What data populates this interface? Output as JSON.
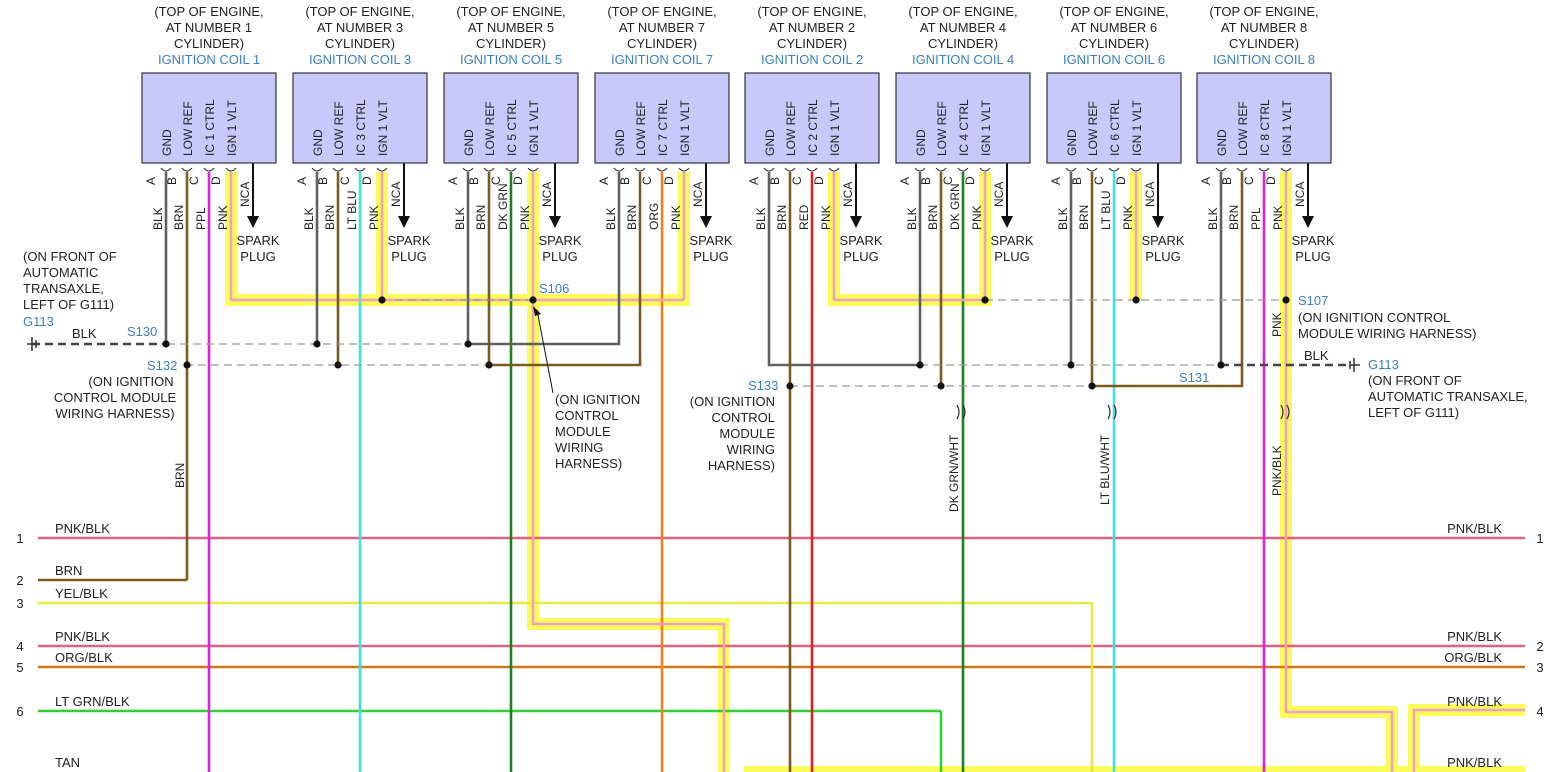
{
  "coil_location": [
    "(TOP OF ENGINE,",
    "CYLINDER)"
  ],
  "coils": [
    {
      "title": "IGNITION COIL 1",
      "cyl": "AT NUMBER 1",
      "pins": [
        "GND",
        "LOW REF",
        "IC 1 CTRL",
        "IGN 1 VLT"
      ],
      "wires": [
        "BLK",
        "BRN",
        "PPL",
        "PNK"
      ]
    },
    {
      "title": "IGNITION COIL 3",
      "cyl": "AT NUMBER 3",
      "pins": [
        "GND",
        "LOW REF",
        "IC 3 CTRL",
        "IGN 1 VLT"
      ],
      "wires": [
        "BLK",
        "BRN",
        "LT BLU",
        "PNK"
      ]
    },
    {
      "title": "IGNITION COIL 5",
      "cyl": "AT NUMBER 5",
      "pins": [
        "GND",
        "LOW REF",
        "IC 5 CTRL",
        "IGN 1 VLT"
      ],
      "wires": [
        "BLK",
        "BRN",
        "DK GRN",
        "PNK"
      ]
    },
    {
      "title": "IGNITION COIL 7",
      "cyl": "AT NUMBER 7",
      "pins": [
        "GND",
        "LOW REF",
        "IC 7 CTRL",
        "IGN 1 VLT"
      ],
      "wires": [
        "BLK",
        "BRN",
        "ORG",
        "PNK"
      ]
    },
    {
      "title": "IGNITION COIL 2",
      "cyl": "AT NUMBER 2",
      "pins": [
        "GND",
        "LOW REF",
        "IC 2 CTRL",
        "IGN 1 VLT"
      ],
      "wires": [
        "BLK",
        "BRN",
        "RED",
        "PNK"
      ]
    },
    {
      "title": "IGNITION COIL 4",
      "cyl": "AT NUMBER 4",
      "pins": [
        "GND",
        "LOW REF",
        "IC 4 CTRL",
        "IGN 1 VLT"
      ],
      "wires": [
        "BLK",
        "BRN",
        "DK GRN",
        "PNK"
      ]
    },
    {
      "title": "IGNITION COIL 6",
      "cyl": "AT NUMBER 6",
      "pins": [
        "GND",
        "LOW REF",
        "IC 6 CTRL",
        "IGN 1 VLT"
      ],
      "wires": [
        "BLK",
        "BRN",
        "LT BLU",
        "PNK"
      ]
    },
    {
      "title": "IGNITION COIL 8",
      "cyl": "AT NUMBER 8",
      "pins": [
        "GND",
        "LOW REF",
        "IC 8 CTRL",
        "IGN 1 VLT"
      ],
      "wires": [
        "BLK",
        "BRN",
        "PPL",
        "PNK"
      ]
    }
  ],
  "pin_letters": [
    "A",
    "B",
    "C",
    "D"
  ],
  "nca": "NCA",
  "spark_plug": [
    "SPARK",
    "PLUG"
  ],
  "splices": {
    "s130": "S130",
    "s132": "S132",
    "s106": "S106",
    "s107": "S107",
    "s133": "S133",
    "s131": "S131"
  },
  "grounds": {
    "left_name": "G113",
    "left_note": [
      "(ON FRONT OF",
      "AUTOMATIC",
      "TRANSAXLE,",
      "LEFT OF G111)"
    ],
    "left_wire": "BLK",
    "right_name": "G113",
    "right_note": [
      "(ON FRONT OF",
      "AUTOMATIC TRANSAXLE,",
      "LEFT OF G111)"
    ],
    "right_wire": "BLK"
  },
  "notes": {
    "s132": [
      "(ON IGNITION",
      "CONTROL MODULE",
      "WIRING HARNESS)"
    ],
    "s106": [
      "(ON IGNITION",
      "CONTROL",
      "MODULE",
      "WIRING",
      "HARNESS)"
    ],
    "s133": [
      "(ON IGNITION",
      "CONTROL",
      "MODULE",
      "WIRING",
      "HARNESS)"
    ],
    "s107": [
      "(ON IGNITION CONTROL",
      "MODULE WIRING HARNESS)"
    ]
  },
  "vertical_labels": {
    "brn": "BRN",
    "dkgrn_wht": "DK GRN/WHT",
    "ltblu_wht": "LT BLU/WHT",
    "pnk_s107": "PNK",
    "pnk_blk": "PNK/BLK"
  },
  "left_rows": [
    {
      "num": "1",
      "label": "PNK/BLK"
    },
    {
      "num": "2",
      "label": "BRN"
    },
    {
      "num": "3",
      "label": "YEL/BLK"
    },
    {
      "num": "4",
      "label": "PNK/BLK"
    },
    {
      "num": "5",
      "label": "ORG/BLK"
    },
    {
      "num": "6",
      "label": "LT GRN/BLK"
    },
    {
      "num": "",
      "label": "TAN"
    }
  ],
  "right_rows": [
    {
      "num": "1",
      "label": "PNK/BLK"
    },
    {
      "num": "2",
      "label": "PNK/BLK"
    },
    {
      "num": "3",
      "label": "ORG/BLK"
    },
    {
      "num": "4",
      "label": "PNK/BLK"
    },
    {
      "num": "",
      "label": "PNK/BLK"
    }
  ],
  "colors": {
    "blk": "#606060",
    "brn": "#7a5a1e",
    "ppl": "#e020e0",
    "pnk": "#f0a0c0",
    "ltblu": "#40e0e8",
    "dkgrn": "#208020",
    "org": "#f08020",
    "red": "#e02020",
    "pnkblk": "#e06080",
    "yelblk": "#e8e840",
    "orgblk": "#d07818",
    "ltgrn": "#30d030",
    "highlight": "#fbfb5a",
    "label_blue": "#3a7fc0"
  }
}
